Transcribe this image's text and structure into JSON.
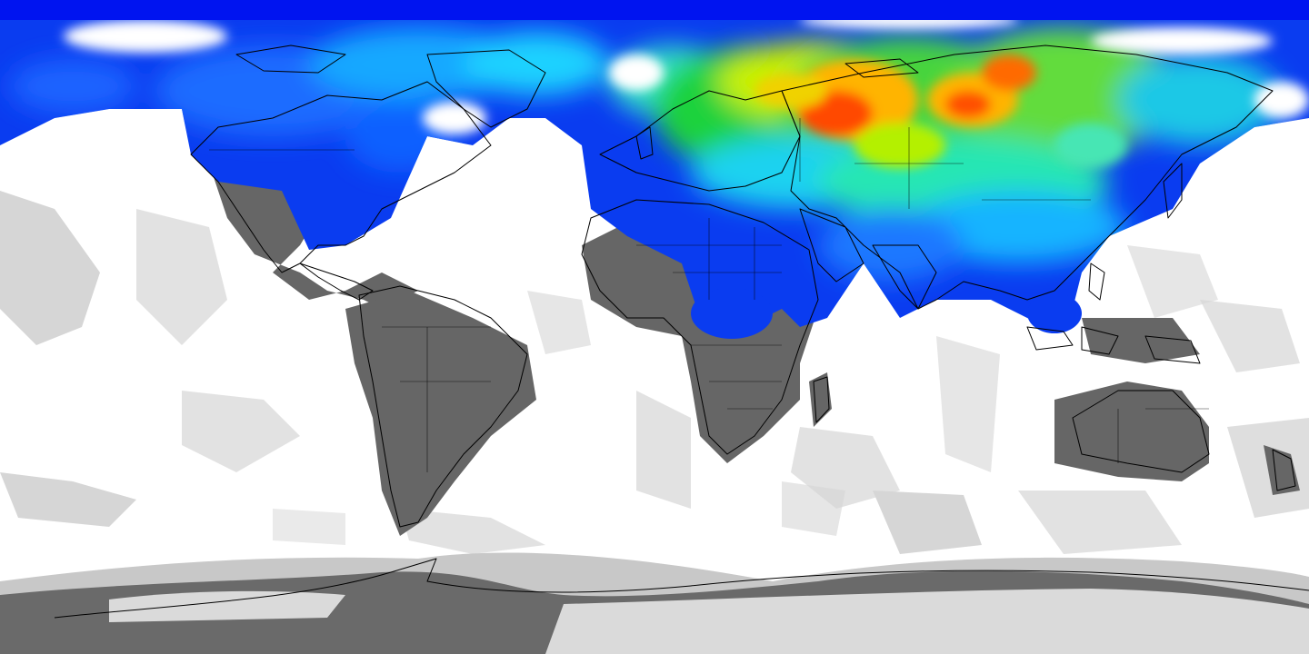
{
  "map": {
    "projection": "equirectangular",
    "extent": {
      "lon": [
        -180,
        180
      ],
      "lat": [
        -90,
        90
      ]
    },
    "background": "#ffffff",
    "coastline_color": "#000000",
    "colors": {
      "no_data_light": "#dcdcdc",
      "no_data_mid": "#b4b4b4",
      "no_data_dark": "#646464",
      "scale": [
        "#0000dc",
        "#0050ff",
        "#00c8ff",
        "#46e6b4",
        "#00d23c",
        "#b4f000",
        "#ffd200",
        "#ff6400",
        "#e61e00"
      ]
    },
    "legend": "none",
    "labels": []
  }
}
